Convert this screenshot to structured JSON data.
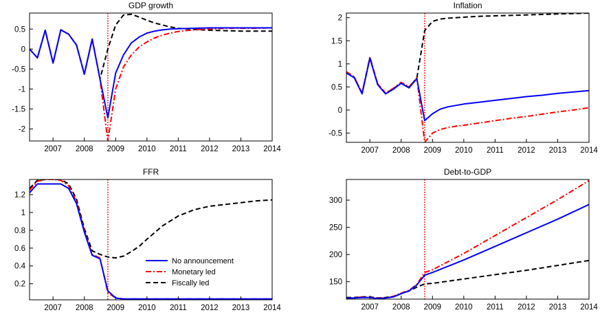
{
  "legend": {
    "entries": [
      "No announcement",
      "Monetary led",
      "Fiscally led"
    ],
    "placement": "lower-right of FFR panel"
  },
  "styles": {
    "No announcement": {
      "color": "#0000ff",
      "dash": "solid"
    },
    "Monetary led": {
      "color": "#ff0000",
      "dash": "dash-dot"
    },
    "Fiscally led": {
      "color": "#000000",
      "dash": "dashed"
    },
    "vline_color": "#ff0000"
  },
  "chart_data": [
    {
      "type": "line",
      "title": "GDP growth",
      "xlim": [
        2006.25,
        2014.0
      ],
      "ylim": [
        -2.3,
        0.9
      ],
      "yticks": [
        -2,
        -1.5,
        -1,
        -0.5,
        0,
        0.5
      ],
      "ytick_labels": [
        "-2",
        "-1.5",
        "-1",
        "-0.5",
        "0",
        "0.5"
      ],
      "xticks": [
        2007,
        2008,
        2009,
        2010,
        2011,
        2012,
        2013,
        2014
      ],
      "vline": 2008.75,
      "x": [
        2006.25,
        2006.5,
        2006.75,
        2007.0,
        2007.25,
        2007.5,
        2007.75,
        2008.0,
        2008.25,
        2008.5,
        2008.75,
        2009.0,
        2009.25,
        2009.5,
        2009.75,
        2010.0,
        2010.25,
        2010.5,
        2010.75,
        2011.0,
        2011.5,
        2012.0,
        2012.5,
        2013.0,
        2013.5,
        2014.0
      ],
      "series": [
        {
          "name": "No announcement",
          "values": [
            0.0,
            -0.22,
            0.47,
            -0.35,
            0.48,
            0.37,
            0.1,
            -0.63,
            0.25,
            -0.75,
            -1.72,
            -0.6,
            -0.15,
            0.15,
            0.3,
            0.4,
            0.45,
            0.48,
            0.5,
            0.51,
            0.52,
            0.53,
            0.53,
            0.53,
            0.53,
            0.53
          ]
        },
        {
          "name": "Monetary led",
          "values": [
            0.0,
            -0.22,
            0.47,
            -0.35,
            0.48,
            0.37,
            0.1,
            -0.63,
            0.25,
            -0.75,
            -2.3,
            -1.0,
            -0.45,
            -0.15,
            0.05,
            0.18,
            0.28,
            0.35,
            0.4,
            0.44,
            0.48,
            0.5,
            0.52,
            0.52,
            0.52,
            0.53
          ]
        },
        {
          "name": "Fiscally led",
          "values": [
            0.0,
            -0.22,
            0.47,
            -0.35,
            0.48,
            0.37,
            0.1,
            -0.63,
            0.25,
            -0.75,
            0.0,
            0.6,
            0.85,
            0.87,
            0.8,
            0.72,
            0.65,
            0.6,
            0.55,
            0.52,
            0.49,
            0.47,
            0.46,
            0.45,
            0.45,
            0.45
          ]
        }
      ]
    },
    {
      "type": "line",
      "title": "Inflation",
      "xlim": [
        2006.25,
        2014.0
      ],
      "ylim": [
        -0.7,
        2.1
      ],
      "yticks": [
        -0.5,
        0,
        0.5,
        1,
        1.5,
        2
      ],
      "ytick_labels": [
        "-0.5",
        "0",
        "0.5",
        "1",
        "1.5",
        "2"
      ],
      "xticks": [
        2007,
        2008,
        2009,
        2010,
        2011,
        2012,
        2013,
        2014
      ],
      "vline": 2008.75,
      "x": [
        2006.25,
        2006.5,
        2006.75,
        2007.0,
        2007.25,
        2007.5,
        2007.75,
        2008.0,
        2008.25,
        2008.5,
        2008.75,
        2009.0,
        2009.25,
        2009.5,
        2009.75,
        2010.0,
        2010.5,
        2011.0,
        2011.5,
        2012.0,
        2012.5,
        2013.0,
        2013.5,
        2014.0
      ],
      "series": [
        {
          "name": "No announcement",
          "values": [
            0.8,
            0.7,
            0.35,
            1.12,
            0.55,
            0.35,
            0.45,
            0.58,
            0.48,
            0.68,
            -0.23,
            -0.08,
            0.02,
            0.07,
            0.1,
            0.13,
            0.17,
            0.21,
            0.25,
            0.29,
            0.32,
            0.36,
            0.39,
            0.42
          ]
        },
        {
          "name": "Monetary led",
          "values": [
            0.83,
            0.72,
            0.37,
            1.15,
            0.57,
            0.37,
            0.47,
            0.6,
            0.5,
            0.7,
            -0.7,
            -0.5,
            -0.42,
            -0.38,
            -0.35,
            -0.33,
            -0.28,
            -0.23,
            -0.18,
            -0.14,
            -0.09,
            -0.04,
            0.0,
            0.05
          ]
        },
        {
          "name": "Fiscally led",
          "values": [
            0.81,
            0.71,
            0.36,
            1.13,
            0.56,
            0.36,
            0.46,
            0.59,
            0.49,
            0.69,
            1.72,
            1.92,
            1.97,
            1.99,
            2.0,
            2.01,
            2.03,
            2.04,
            2.05,
            2.06,
            2.07,
            2.08,
            2.09,
            2.1
          ]
        }
      ]
    },
    {
      "type": "line",
      "title": "FFR",
      "xlim": [
        2006.25,
        2014.0
      ],
      "ylim": [
        0.02,
        1.37
      ],
      "yticks": [
        0.2,
        0.4,
        0.6,
        0.8,
        1,
        1.2
      ],
      "ytick_labels": [
        "0.2",
        "0.4",
        "0.6",
        "0.8",
        "1",
        "1.2"
      ],
      "xticks": [
        2007,
        2008,
        2009,
        2010,
        2011,
        2012,
        2013,
        2014
      ],
      "vline": 2008.75,
      "x": [
        2006.25,
        2006.5,
        2006.75,
        2007.0,
        2007.25,
        2007.5,
        2007.75,
        2008.0,
        2008.25,
        2008.5,
        2008.75,
        2009.0,
        2009.25,
        2009.5,
        2009.75,
        2010.0,
        2010.5,
        2011.0,
        2011.5,
        2012.0,
        2012.5,
        2013.0,
        2013.5,
        2014.0
      ],
      "series": [
        {
          "name": "No announcement",
          "values": [
            1.22,
            1.32,
            1.32,
            1.32,
            1.32,
            1.27,
            1.1,
            0.78,
            0.52,
            0.48,
            0.12,
            0.04,
            0.03,
            0.03,
            0.03,
            0.03,
            0.03,
            0.03,
            0.03,
            0.03,
            0.03,
            0.03,
            0.03,
            0.03
          ]
        },
        {
          "name": "Monetary led",
          "values": [
            1.25,
            1.35,
            1.37,
            1.37,
            1.36,
            1.3,
            1.12,
            0.8,
            0.53,
            0.49,
            0.1,
            0.04,
            0.03,
            0.03,
            0.03,
            0.03,
            0.03,
            0.03,
            0.03,
            0.03,
            0.03,
            0.03,
            0.03,
            0.03
          ]
        },
        {
          "name": "Fiscally led",
          "values": [
            1.27,
            1.36,
            1.37,
            1.37,
            1.37,
            1.32,
            1.15,
            0.82,
            0.57,
            0.53,
            0.5,
            0.49,
            0.51,
            0.56,
            0.62,
            0.7,
            0.85,
            0.96,
            1.03,
            1.07,
            1.09,
            1.11,
            1.13,
            1.14
          ]
        }
      ]
    },
    {
      "type": "line",
      "title": "Debt-to-GDP",
      "xlim": [
        2006.25,
        2014.0
      ],
      "ylim": [
        118,
        338
      ],
      "yticks": [
        150,
        200,
        250,
        300
      ],
      "ytick_labels": [
        "150",
        "200",
        "250",
        "300"
      ],
      "xticks": [
        2007,
        2008,
        2009,
        2010,
        2011,
        2012,
        2013,
        2014
      ],
      "vline": 2008.75,
      "x": [
        2006.25,
        2006.5,
        2006.75,
        2007.0,
        2007.25,
        2007.5,
        2007.75,
        2008.0,
        2008.25,
        2008.5,
        2008.75,
        2009.0,
        2010.0,
        2011.0,
        2012.0,
        2013.0,
        2014.0
      ],
      "series": [
        {
          "name": "No announcement",
          "values": [
            120,
            120,
            121,
            121,
            119,
            120,
            122,
            128,
            133,
            144,
            162,
            167,
            190,
            215,
            240,
            265,
            292
          ]
        },
        {
          "name": "Monetary led",
          "values": [
            120,
            120,
            122,
            121,
            120,
            120,
            123,
            129,
            134,
            145,
            167,
            172,
            202,
            235,
            268,
            301,
            336
          ]
        },
        {
          "name": "Fiscally led",
          "values": [
            121,
            121,
            122,
            122,
            120,
            121,
            123,
            128,
            133,
            140,
            146,
            147,
            155,
            163,
            171,
            180,
            189
          ]
        }
      ]
    }
  ]
}
